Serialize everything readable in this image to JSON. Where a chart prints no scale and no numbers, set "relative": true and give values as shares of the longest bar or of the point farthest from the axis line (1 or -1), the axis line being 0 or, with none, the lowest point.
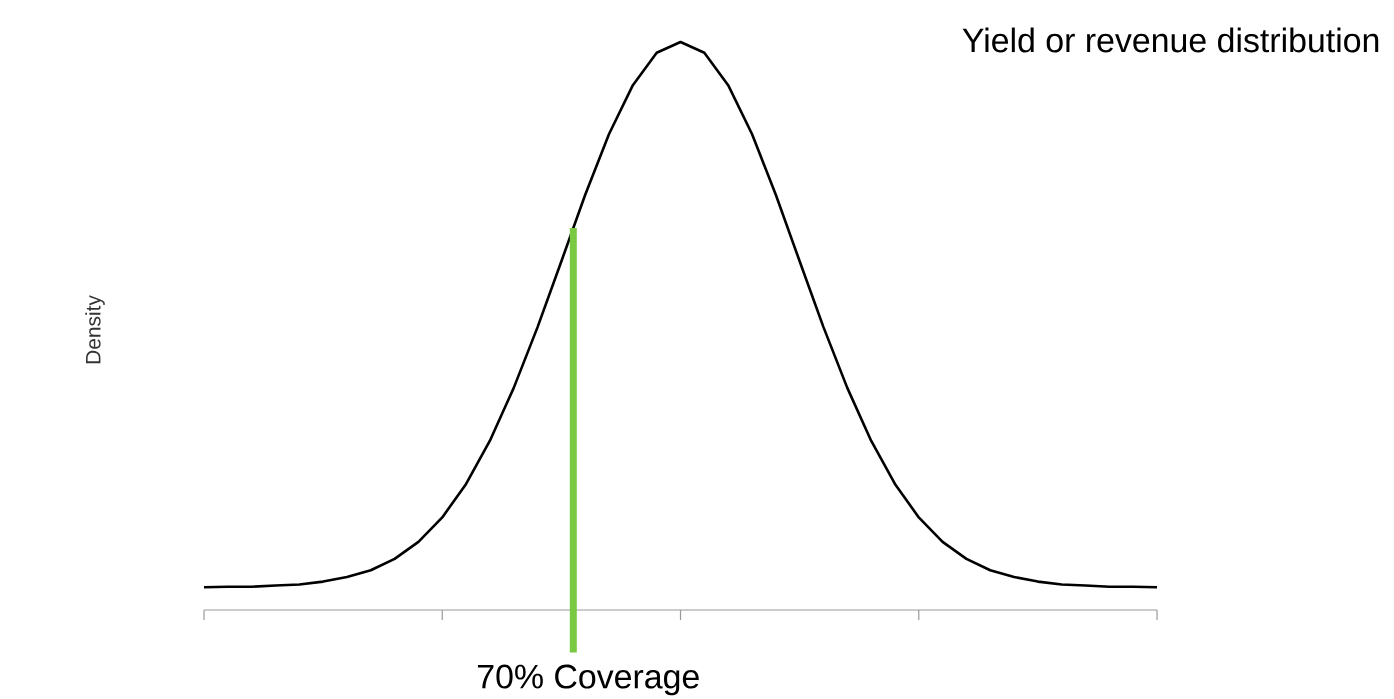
{
  "chart_data": {
    "type": "line",
    "relative": true,
    "title": "Yield or revenue distribution",
    "ylabel": "Density",
    "categories": [
      null,
      null,
      null,
      null,
      null,
      null,
      null,
      null,
      null,
      null,
      null,
      null,
      null,
      null,
      null,
      null,
      null,
      null,
      null,
      null,
      null,
      null,
      null,
      null,
      null,
      null,
      null,
      null,
      null,
      null,
      null,
      null,
      null,
      null,
      null,
      null,
      null,
      null,
      null,
      null,
      null
    ],
    "series": [
      {
        "color": "#000000",
        "values": [
          0.04,
          0.041,
          0.041,
          0.043,
          0.045,
          0.05,
          0.058,
          0.07,
          0.09,
          0.12,
          0.163,
          0.222,
          0.298,
          0.391,
          0.498,
          0.614,
          0.731,
          0.838,
          0.924,
          0.981,
          1,
          0.981,
          0.924,
          0.838,
          0.731,
          0.614,
          0.498,
          0.391,
          0.298,
          0.222,
          0.163,
          0.12,
          0.09,
          0.07,
          0.058,
          0.05,
          0.045,
          0.043,
          0.041,
          0.041,
          0.04
        ]
      }
    ],
    "grid": false,
    "annotations": [
      "70% Coverage"
    ]
  }
}
